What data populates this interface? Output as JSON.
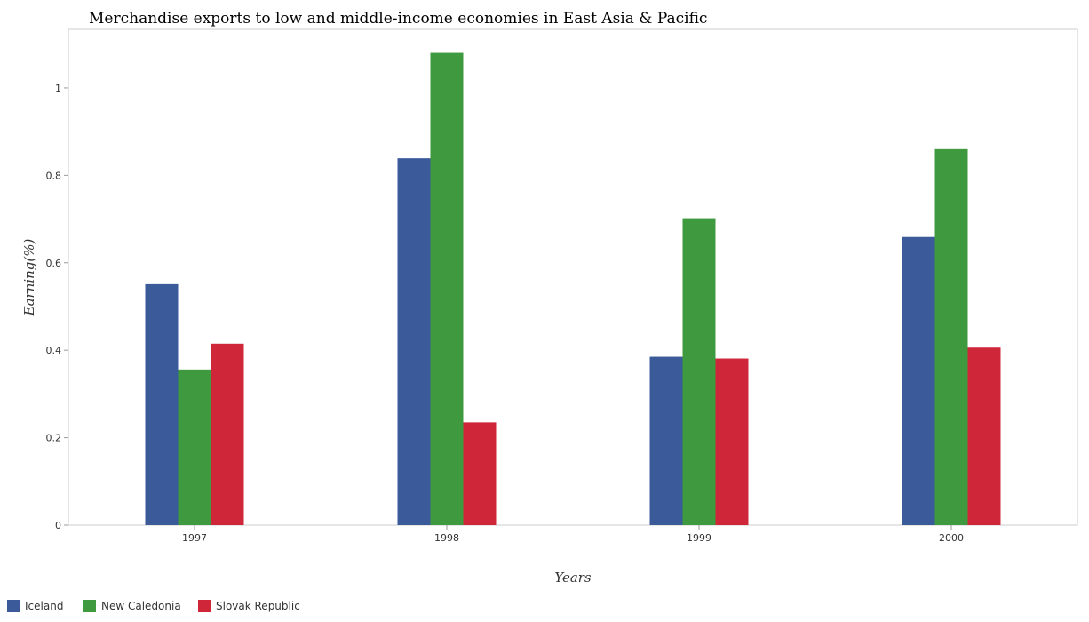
{
  "chart_data": {
    "type": "bar",
    "title": "Merchandise exports to low and middle-income economies in East Asia & Pacific",
    "xlabel": "Years",
    "ylabel": "Earning(%)",
    "categories": [
      "1997",
      "1998",
      "1999",
      "2000"
    ],
    "series": [
      {
        "name": "Iceland",
        "color": "#3a5a9a",
        "values": [
          0.551,
          0.839,
          0.385,
          0.659
        ]
      },
      {
        "name": "New Caledonia",
        "color": "#3f9a3f",
        "values": [
          0.356,
          1.08,
          0.702,
          0.86
        ]
      },
      {
        "name": "Slovak Republic",
        "color": "#d0263a",
        "values": [
          0.415,
          0.235,
          0.381,
          0.406
        ]
      }
    ],
    "ylim": [
      0,
      1.134
    ],
    "yticks": [
      0,
      0.2,
      0.4,
      0.6,
      0.8,
      1
    ],
    "ytick_labels": [
      "0",
      "0.2",
      "0.4",
      "0.6",
      "0.8",
      "1"
    ],
    "grid": false,
    "legend_position": "bottom-left"
  }
}
